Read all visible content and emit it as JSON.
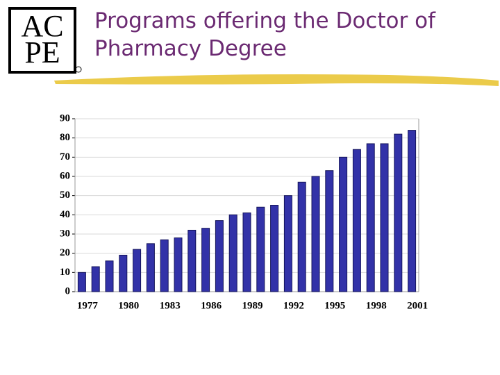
{
  "logo": [
    "AC",
    "PE"
  ],
  "chart_data": {
    "type": "bar",
    "title": "Programs offering the Doctor of Pharmacy Degree",
    "categories": [
      "1977",
      null,
      null,
      "1980",
      null,
      null,
      "1983",
      null,
      null,
      "1986",
      null,
      null,
      "1989",
      null,
      null,
      "1992",
      null,
      null,
      "1995",
      null,
      null,
      "1998",
      null,
      null,
      "2001"
    ],
    "values": [
      10,
      13,
      16,
      19,
      22,
      25,
      27,
      28,
      32,
      33,
      37,
      40,
      41,
      44,
      45,
      50,
      57,
      60,
      63,
      70,
      74,
      77,
      77,
      82,
      84
    ],
    "color": "#3232a8",
    "ylim": [
      0,
      90
    ],
    "yticks": [
      0,
      10,
      20,
      30,
      40,
      50,
      60,
      70,
      80,
      90
    ],
    "grid": true
  }
}
